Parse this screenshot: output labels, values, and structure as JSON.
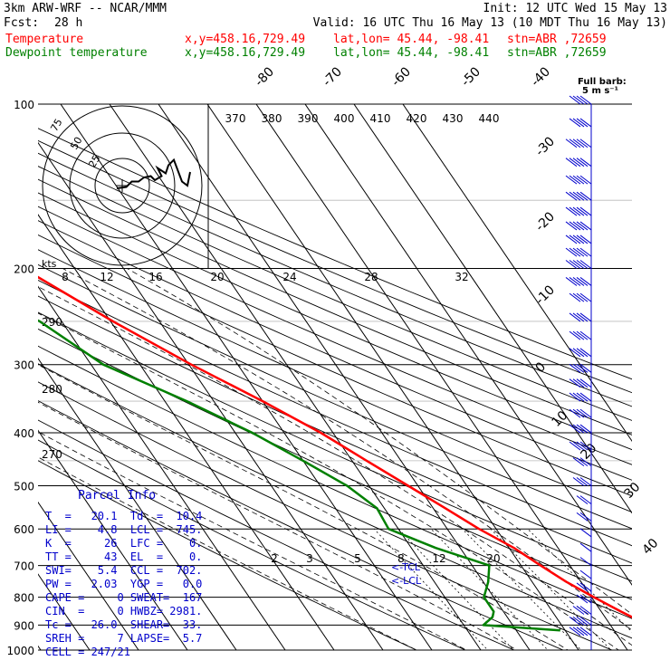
{
  "header": {
    "model": "3km ARW-WRF -- NCAR/MMM",
    "init": "Init: 12 UTC Wed 15 May 13",
    "fcst_label": "Fcst:",
    "fcst_value": "28 h",
    "valid": "Valid: 16 UTC Thu 16 May 13 (10 MDT Thu 16 May 13)",
    "temp_label": "Temperature",
    "dew_label": "Dewpoint temperature",
    "xy": "x,y=458.16,729.49",
    "latlon": "lat,lon= 45.44, -98.41",
    "stn": "stn=ABR ,72659"
  },
  "barb_legend": {
    "title": "Full barb:",
    "value": "5 m s⁻¹"
  },
  "colors": {
    "temperature": "#ff0000",
    "dewpoint": "#008000",
    "parcel": "#0000cc",
    "wind": "#0000cc"
  },
  "hodograph": {
    "kts_label": "kts",
    "ring_labels": [
      "75",
      "50",
      "25"
    ]
  },
  "parcel_info": {
    "title": "Parcel Info",
    "rows": [
      {
        "text": "T  =   20.1  Td  =  10.4"
      },
      {
        "text": "LI =    4.8  LCL =  745."
      },
      {
        "text": "K  =     26  LFC =    0."
      },
      {
        "text": "TT =     43  EL  =    0."
      },
      {
        "text": "SWI=    5.4  CCL =  702."
      },
      {
        "text": "PW =   2.03  YGP =   0.0"
      },
      {
        "text": "CAPE =     0 SWEAT=  167"
      },
      {
        "text": "CIN  =     0 HWBZ= 2981."
      },
      {
        "text": "Tc =   26.0  SHEAR=  33."
      },
      {
        "text": "SREH =     7 LAPSE=  5.7"
      },
      {
        "text": "CELL = 247/21"
      }
    ]
  },
  "lcl_labels": [
    "<-TCL",
    "<-LCL"
  ],
  "chart_data": {
    "type": "line",
    "title": "",
    "xlabel": "",
    "ylabel": "",
    "pressure_axis": {
      "scale": "log",
      "range": [
        1000,
        100
      ],
      "tick_labels": [
        "100",
        "200",
        "300",
        "400",
        "500",
        "600",
        "700",
        "800",
        "900",
        "1000"
      ],
      "ticks": [
        100,
        200,
        300,
        400,
        500,
        600,
        700,
        800,
        900,
        1000
      ]
    },
    "isotherm_labels": [
      "-80",
      "-70",
      "-60",
      "-50",
      "-40",
      "-30",
      "-20",
      "-10",
      "0",
      "10",
      "20",
      "30",
      "40"
    ],
    "theta_labels": [
      "370",
      "380",
      "390",
      "400",
      "410",
      "420",
      "430",
      "440"
    ],
    "mixing_ratio_labels_upper": [
      "8",
      "12",
      "16",
      "20",
      "24",
      "28",
      "32"
    ],
    "mixing_ratio_labels_lower": [
      "2",
      "3",
      "5",
      "8",
      "12",
      "20"
    ],
    "theta_side_labels": [
      "290",
      "280",
      "270"
    ],
    "series": [
      {
        "name": "Temperature",
        "color": "#ff0000",
        "points": [
          [
            920,
            30.0
          ],
          [
            900,
            27.0
          ],
          [
            870,
            25.5
          ],
          [
            850,
            24.0
          ],
          [
            800,
            20.5
          ],
          [
            750,
            17.0
          ],
          [
            700,
            14.0
          ],
          [
            650,
            11.0
          ],
          [
            600,
            6.5
          ],
          [
            550,
            2.5
          ],
          [
            500,
            -2.0
          ],
          [
            450,
            -7.0
          ],
          [
            400,
            -12.5
          ],
          [
            350,
            -20.0
          ],
          [
            300,
            -29.5
          ],
          [
            250,
            -39.5
          ],
          [
            200,
            -50.5
          ],
          [
            175,
            -51.5
          ],
          [
            150,
            -54.5
          ],
          [
            125,
            -53.0
          ],
          [
            110,
            -54.0
          ],
          [
            100,
            -57.0
          ]
        ]
      },
      {
        "name": "Dewpoint temperature",
        "color": "#008000",
        "points": [
          [
            920,
            9.0
          ],
          [
            900,
            -6.0
          ],
          [
            870,
            -3.0
          ],
          [
            850,
            -2.0
          ],
          [
            800,
            -2.0
          ],
          [
            750,
            1.0
          ],
          [
            700,
            3.5
          ],
          [
            650,
            -5.0
          ],
          [
            600,
            -12.0
          ],
          [
            550,
            -11.5
          ],
          [
            500,
            -14.5
          ],
          [
            450,
            -20.0
          ],
          [
            400,
            -26.5
          ],
          [
            350,
            -35.5
          ],
          [
            300,
            -47.5
          ],
          [
            250,
            -54.5
          ],
          [
            200,
            -67.5
          ],
          [
            175,
            -70.0
          ],
          [
            150,
            -71.5
          ],
          [
            125,
            -73.0
          ],
          [
            110,
            -75.0
          ],
          [
            100,
            -76.0
          ]
        ]
      }
    ],
    "hodograph_trace": [
      [
        -2.0,
        -1.0
      ],
      [
        1.5,
        -0.5
      ],
      [
        3.5,
        1.5
      ],
      [
        6.0,
        1.5
      ],
      [
        8.0,
        3.0
      ],
      [
        10.5,
        3.5
      ],
      [
        12.0,
        2.0
      ],
      [
        14.5,
        3.5
      ],
      [
        13.0,
        6.5
      ],
      [
        16.0,
        4.5
      ],
      [
        17.0,
        7.5
      ],
      [
        19.0,
        9.5
      ],
      [
        22.0,
        1.5
      ],
      [
        24.0,
        0.0
      ],
      [
        25.0,
        5.0
      ]
    ],
    "wind_barbs": [
      {
        "p": 100,
        "speed": 20
      },
      {
        "p": 110,
        "speed": 22
      },
      {
        "p": 120,
        "speed": 24
      },
      {
        "p": 130,
        "speed": 25
      },
      {
        "p": 140,
        "speed": 25
      },
      {
        "p": 150,
        "speed": 26
      },
      {
        "p": 160,
        "speed": 26
      },
      {
        "p": 170,
        "speed": 25
      },
      {
        "p": 180,
        "speed": 24
      },
      {
        "p": 190,
        "speed": 24
      },
      {
        "p": 200,
        "speed": 25
      },
      {
        "p": 215,
        "speed": 25
      },
      {
        "p": 230,
        "speed": 22
      },
      {
        "p": 250,
        "speed": 20
      },
      {
        "p": 270,
        "speed": 20
      },
      {
        "p": 290,
        "speed": 22
      },
      {
        "p": 310,
        "speed": 22
      },
      {
        "p": 330,
        "speed": 20
      },
      {
        "p": 350,
        "speed": 20
      },
      {
        "p": 375,
        "speed": 20
      },
      {
        "p": 400,
        "speed": 20
      },
      {
        "p": 430,
        "speed": 18
      },
      {
        "p": 460,
        "speed": 16
      },
      {
        "p": 500,
        "speed": 15
      },
      {
        "p": 540,
        "speed": 12
      },
      {
        "p": 580,
        "speed": 10
      },
      {
        "p": 620,
        "speed": 5
      },
      {
        "p": 660,
        "speed": 5
      },
      {
        "p": 700,
        "speed": 5
      },
      {
        "p": 740,
        "speed": 5
      },
      {
        "p": 780,
        "speed": 10
      },
      {
        "p": 820,
        "speed": 12
      },
      {
        "p": 860,
        "speed": 15
      },
      {
        "p": 900,
        "speed": 18
      },
      {
        "p": 940,
        "speed": 20
      }
    ]
  }
}
